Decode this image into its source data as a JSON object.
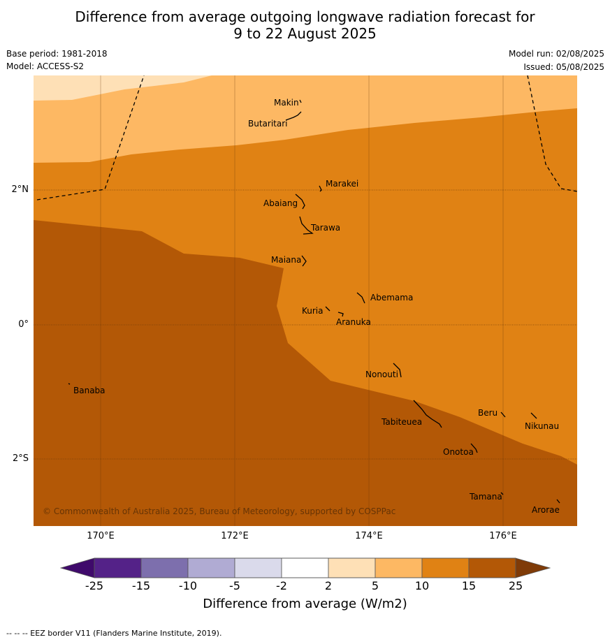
{
  "title_line1": "Difference from average outgoing longwave radiation forecast for",
  "title_line2": "9 to 22 August 2025",
  "meta": {
    "base_period": "Base period: 1981-2018",
    "model": "Model: ACCESS-S2",
    "model_run": "Model run: 02/08/2025",
    "issued": "Issued: 05/08/2025"
  },
  "copyright": "© Commonwealth of Australia 2025, Bureau of Meteorology, supported by COSPPac",
  "latitude_labels": [
    "2°N",
    "0°",
    "2°S"
  ],
  "longitude_labels": [
    "170°E",
    "172°E",
    "174°E",
    "176°E"
  ],
  "islands": [
    "Makin",
    "Butaritari",
    "Marakei",
    "Abaiang",
    "Tarawa",
    "Maiana",
    "Abemama",
    "Kuria",
    "Aranuka",
    "Nonouti",
    "Banaba",
    "Beru",
    "Tabiteuea",
    "Nikunau",
    "Onotoa",
    "Tamana",
    "Arorae"
  ],
  "colorbar": {
    "tick_labels": [
      "-25",
      "-15",
      "-10",
      "-5",
      "-2",
      "2",
      "5",
      "10",
      "15",
      "25"
    ],
    "colors": [
      "#3f0a6b",
      "#542288",
      "#7d6fad",
      "#b0abd3",
      "#dadaeb",
      "#ffffff",
      "#fee0b6",
      "#fdb863",
      "#e08214",
      "#b35806",
      "#7f3b08"
    ],
    "title": "Difference from average (W/m2)"
  },
  "footer": "--  --  -- EEZ border V11 (Flanders Marine Institute, 2019)."
}
